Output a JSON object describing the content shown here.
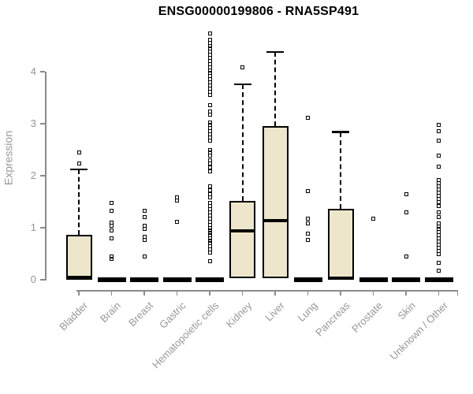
{
  "title": "ENSG00000199806 - RNA5SP491",
  "colors": {
    "box_fill": "#EDE6CB",
    "box_border": "#000000",
    "axis": "#8A8A8A",
    "axis_text": "#979797",
    "title_text": "#000000"
  },
  "chart_data": {
    "type": "boxplot",
    "title": "ENSG00000199806 - RNA5SP491",
    "xlabel": "",
    "ylabel": "Expression",
    "ylim": [
      0,
      4.85
    ],
    "grid": false,
    "legend": "none",
    "y_axis": {
      "ticks": [
        0,
        1,
        2,
        3,
        4
      ]
    },
    "categories": [
      "Bladder",
      "Brain",
      "Breast",
      "Gastric",
      "Hematopoietic cells",
      "Kidney",
      "Liver",
      "Lung",
      "Pancreas",
      "Prostate",
      "Skin",
      "Unknown / Other"
    ],
    "boxes": [
      {
        "category": "Bladder",
        "q1": 0,
        "median": 0.04,
        "q3": 0.86,
        "whisker_low": 0,
        "whisker_high": 2.12,
        "outliers": [
          2.45,
          2.23
        ]
      },
      {
        "category": "Brain",
        "q1": 0,
        "median": 0,
        "q3": 0,
        "whisker_low": 0,
        "whisker_high": 0,
        "outliers": [
          1.47,
          1.33,
          1.1,
          1.04,
          0.95,
          0.79,
          0.44,
          0.4
        ]
      },
      {
        "category": "Breast",
        "q1": 0,
        "median": 0,
        "q3": 0,
        "whisker_low": 0,
        "whisker_high": 0,
        "outliers": [
          1.32,
          1.21,
          1.04,
          0.98,
          0.83,
          0.77,
          0.45
        ]
      },
      {
        "category": "Gastric",
        "q1": 0,
        "median": 0,
        "q3": 0,
        "whisker_low": 0,
        "whisker_high": 0,
        "outliers": [
          1.58,
          1.53,
          1.11
        ]
      },
      {
        "category": "Hematopoietic cells",
        "q1": 0,
        "median": 0,
        "q3": 0,
        "whisker_low": 0,
        "whisker_high": 0,
        "outliers": [
          4.73,
          4.62,
          4.56,
          4.5,
          4.44,
          4.38,
          4.33,
          4.27,
          4.21,
          4.15,
          4.09,
          4.03,
          3.97,
          3.91,
          3.85,
          3.79,
          3.73,
          3.67,
          3.61,
          3.56,
          3.36,
          3.24,
          3.18,
          3.03,
          2.97,
          2.91,
          2.85,
          2.79,
          2.73,
          2.67,
          2.5,
          2.44,
          2.39,
          2.3,
          2.23,
          2.16,
          2.09,
          1.79,
          1.72,
          1.65,
          1.59,
          1.48,
          1.42,
          1.36,
          1.3,
          1.24,
          1.18,
          1.12,
          1.06,
          1.0,
          0.95,
          0.9,
          0.85,
          0.8,
          0.75,
          0.7,
          0.64,
          0.58,
          0.53,
          0.35
        ]
      },
      {
        "category": "Kidney",
        "q1": 0.03,
        "median": 0.94,
        "q3": 1.52,
        "whisker_low": 0.03,
        "whisker_high": 3.76,
        "outliers": [
          4.08
        ]
      },
      {
        "category": "Liver",
        "q1": 0.03,
        "median": 1.14,
        "q3": 2.95,
        "whisker_low": 0.03,
        "whisker_high": 4.38,
        "outliers": []
      },
      {
        "category": "Lung",
        "q1": 0,
        "median": 0,
        "q3": 0,
        "whisker_low": 0,
        "whisker_high": 0,
        "outliers": [
          3.11,
          1.7,
          1.17,
          1.08,
          0.89,
          0.77
        ]
      },
      {
        "category": "Pancreas",
        "q1": 0,
        "median": 0.03,
        "q3": 1.36,
        "whisker_low": 0,
        "whisker_high": 2.84,
        "outliers": []
      },
      {
        "category": "Prostate",
        "q1": 0,
        "median": 0,
        "q3": 0,
        "whisker_low": 0,
        "whisker_high": 0,
        "outliers": [
          1.17
        ]
      },
      {
        "category": "Skin",
        "q1": 0,
        "median": 0,
        "q3": 0,
        "whisker_low": 0,
        "whisker_high": 0,
        "outliers": [
          1.65,
          1.3,
          0.44
        ]
      },
      {
        "category": "Unknown / Other",
        "q1": 0,
        "median": 0,
        "q3": 0,
        "whisker_low": 0,
        "whisker_high": 0,
        "outliers": [
          2.97,
          2.86,
          2.68,
          2.38,
          2.17,
          1.91,
          1.85,
          1.79,
          1.73,
          1.67,
          1.61,
          1.56,
          1.5,
          1.41,
          1.29,
          1.21,
          1.09,
          1.03,
          0.97,
          0.91,
          0.85,
          0.79,
          0.73,
          0.67,
          0.61,
          0.55,
          0.5,
          0.33,
          0.18
        ]
      }
    ]
  }
}
